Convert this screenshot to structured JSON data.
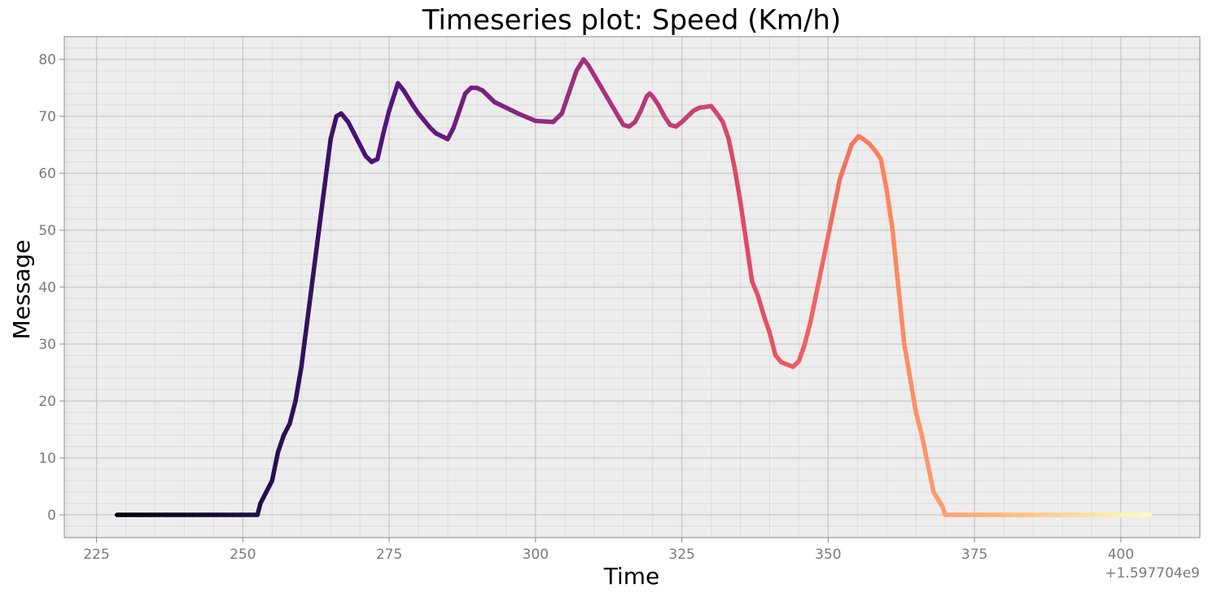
{
  "chart_data": {
    "type": "line",
    "title": "Timeseries plot: Speed (Km/h)",
    "xlabel": "Time",
    "ylabel": "Message",
    "x_offset_label": "+1.597704e9",
    "xlim": [
      219.5,
      413.5
    ],
    "ylim": [
      -4,
      84
    ],
    "xticks": [
      225,
      250,
      275,
      300,
      325,
      350,
      375,
      400
    ],
    "yticks": [
      0,
      10,
      20,
      30,
      40,
      50,
      60,
      70,
      80
    ],
    "grid": true,
    "colormap": "magma",
    "colors": {
      "plot_bg": "#ededed",
      "major_grid": "#c8c8c8",
      "minor_grid": "#dcdcdc",
      "axis_spine": "#888888"
    },
    "series": [
      {
        "x": [
          228.5,
          240,
          252.5,
          253,
          254,
          255,
          256,
          257,
          258,
          259,
          260,
          261,
          262,
          263,
          264,
          265,
          266,
          266.8,
          268,
          269,
          270,
          271,
          272,
          273,
          274,
          275,
          276.5,
          277.5,
          279,
          280,
          282,
          283,
          285,
          286,
          287,
          288,
          289,
          290,
          291,
          292,
          293,
          295,
          297,
          300,
          303,
          304.5,
          305,
          306,
          307,
          308.2,
          309,
          311,
          313,
          315,
          316,
          317,
          318,
          319,
          319.5,
          320,
          321,
          322,
          323,
          324,
          325,
          326,
          327,
          328,
          330,
          331,
          332,
          333,
          334,
          335,
          336,
          337,
          338,
          339,
          340,
          341,
          342,
          344,
          345,
          346,
          347,
          348,
          349,
          350,
          351,
          352,
          353,
          354,
          355.2,
          356,
          357,
          358,
          359,
          360,
          361,
          362,
          363,
          364,
          365,
          366,
          367,
          368,
          369.5,
          370,
          380,
          390,
          405
        ],
        "y": [
          0,
          0,
          0,
          2,
          4,
          6,
          11,
          14,
          16,
          20,
          26,
          34,
          42,
          50,
          58,
          66,
          70,
          70.5,
          69,
          67,
          65,
          63,
          62,
          62.5,
          67,
          71,
          75.8,
          74.5,
          72,
          70.5,
          68,
          67,
          66,
          68,
          71,
          74,
          75,
          75,
          74.5,
          73.5,
          72.5,
          71.5,
          70.5,
          69.2,
          69,
          70.5,
          72,
          75,
          78,
          80,
          79,
          75.5,
          72,
          68.5,
          68.2,
          69,
          71,
          73.5,
          74,
          73.5,
          72,
          70,
          68.5,
          68.2,
          69,
          70,
          71,
          71.5,
          71.8,
          70.5,
          69,
          66,
          61,
          55,
          48,
          41,
          38.5,
          35,
          32,
          28,
          26.8,
          26,
          27,
          30,
          34,
          39,
          44,
          49,
          54,
          59,
          62,
          65,
          66.5,
          66,
          65.2,
          64,
          62.5,
          57,
          50,
          40,
          30,
          24,
          18,
          14,
          9,
          4,
          1.5,
          0,
          0,
          0,
          0
        ]
      }
    ]
  }
}
